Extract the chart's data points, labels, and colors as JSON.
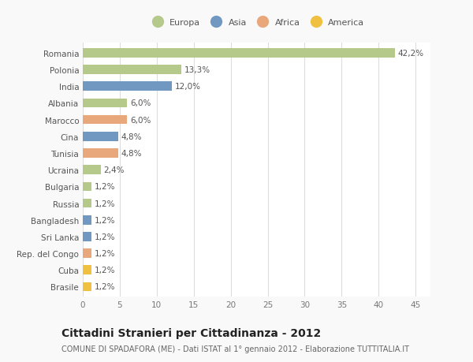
{
  "categories": [
    "Romania",
    "Polonia",
    "India",
    "Albania",
    "Marocco",
    "Cina",
    "Tunisia",
    "Ucraina",
    "Bulgaria",
    "Russia",
    "Bangladesh",
    "Sri Lanka",
    "Rep. del Congo",
    "Cuba",
    "Brasile"
  ],
  "values": [
    42.2,
    13.3,
    12.0,
    6.0,
    6.0,
    4.8,
    4.8,
    2.4,
    1.2,
    1.2,
    1.2,
    1.2,
    1.2,
    1.2,
    1.2
  ],
  "labels": [
    "42,2%",
    "13,3%",
    "12,0%",
    "6,0%",
    "6,0%",
    "4,8%",
    "4,8%",
    "2,4%",
    "1,2%",
    "1,2%",
    "1,2%",
    "1,2%",
    "1,2%",
    "1,2%",
    "1,2%"
  ],
  "colors": [
    "#b5c98a",
    "#b5c98a",
    "#7098c0",
    "#b5c98a",
    "#e8a87c",
    "#7098c0",
    "#e8a87c",
    "#b5c98a",
    "#b5c98a",
    "#b5c98a",
    "#7098c0",
    "#7098c0",
    "#e8a87c",
    "#f0c040",
    "#f0c040"
  ],
  "legend_labels": [
    "Europa",
    "Asia",
    "Africa",
    "America"
  ],
  "legend_colors": [
    "#b5c98a",
    "#7098c0",
    "#e8a87c",
    "#f0c040"
  ],
  "xlim": [
    0,
    47
  ],
  "xticks": [
    0,
    5,
    10,
    15,
    20,
    25,
    30,
    35,
    40,
    45
  ],
  "title": "Cittadini Stranieri per Cittadinanza - 2012",
  "subtitle": "COMUNE DI SPADAFORA (ME) - Dati ISTAT al 1° gennaio 2012 - Elaborazione TUTTITALIA.IT",
  "bg_color": "#f9f9f9",
  "plot_bg_color": "#ffffff",
  "grid_color": "#dddddd",
  "label_fontsize": 7.5,
  "tick_fontsize": 7.5,
  "title_fontsize": 10,
  "subtitle_fontsize": 7,
  "bar_height": 0.55
}
